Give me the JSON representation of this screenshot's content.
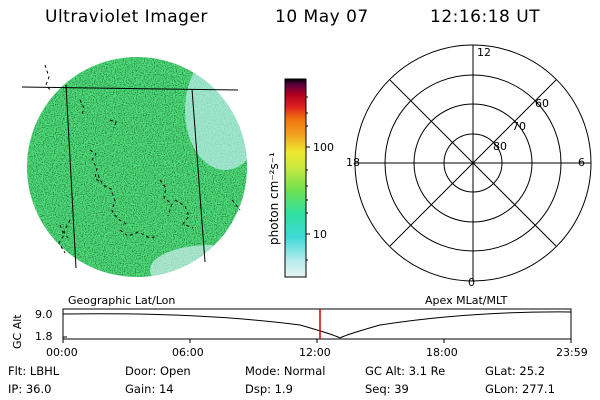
{
  "header": {
    "instrument": "Ultraviolet Imager",
    "date": "10 May 07",
    "time": "12:16:18 UT"
  },
  "left_panel": {
    "caption": "Geographic Lat/Lon",
    "image_desc": "UV auroral image disk with geographic grid and coastlines"
  },
  "colorbar": {
    "label": "photon cm⁻²s⁻¹",
    "ticks": [
      "100",
      "10"
    ],
    "scale": "log",
    "colors": [
      "#e0f0f5",
      "#b8ecec",
      "#40d8d8",
      "#30e0a0",
      "#60e050",
      "#a8e040",
      "#e8e830",
      "#f0b020",
      "#f08010",
      "#e02020",
      "#c00000",
      "#800040",
      "#000000"
    ]
  },
  "right_panel": {
    "caption": "Apex  MLat/MLT",
    "mlt_labels": [
      "12",
      "18",
      "6",
      "0"
    ],
    "mlat_labels": [
      "60",
      "70",
      "80"
    ]
  },
  "altitude_plot": {
    "ylabel": "GC Alt",
    "yticks": [
      "9.0",
      "1.8"
    ],
    "xticks": [
      "00:00",
      "06:00",
      "12:00",
      "18:00",
      "23:59"
    ],
    "marker_color": "#d00000"
  },
  "info": {
    "flt": "Flt: LBHL",
    "door": "Door: Open",
    "mode": "Mode: Normal",
    "gcalt": "GC Alt: 3.1 Re",
    "glat": "GLat:  25.2",
    "ip": "IP: 36.0",
    "gain": "Gain: 14",
    "dsp": "Dsp:    1.9",
    "seq": "Seq: 39",
    "glon": "GLon: 277.1"
  }
}
